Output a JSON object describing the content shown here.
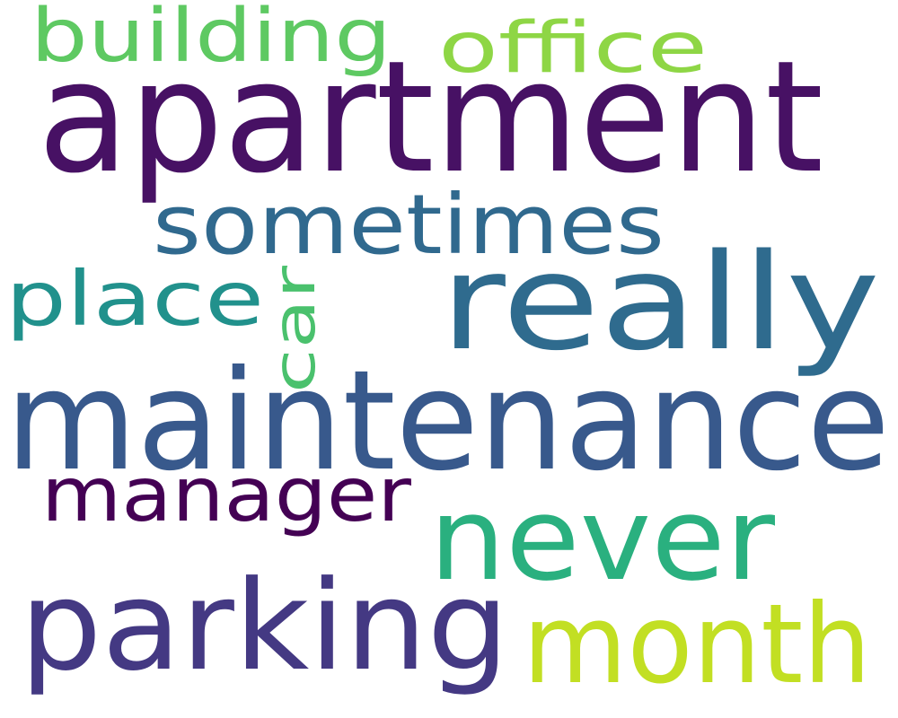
{
  "words": [
    {
      "text": "apartment",
      "color": "#471164"
    },
    {
      "text": "maintenance",
      "color": "#38598c"
    },
    {
      "text": "really",
      "color": "#2f6b8e"
    },
    {
      "text": "parking",
      "color": "#443983"
    },
    {
      "text": "never",
      "color": "#2ab07f"
    },
    {
      "text": "month",
      "color": "#c2df23"
    },
    {
      "text": "sometimes",
      "color": "#30698e"
    },
    {
      "text": "manager",
      "color": "#440154"
    },
    {
      "text": "building",
      "color": "#5ec962"
    },
    {
      "text": "office",
      "color": "#8ed645"
    },
    {
      "text": "place",
      "color": "#21918c"
    },
    {
      "text": "car",
      "color": "#4ac16d"
    }
  ]
}
